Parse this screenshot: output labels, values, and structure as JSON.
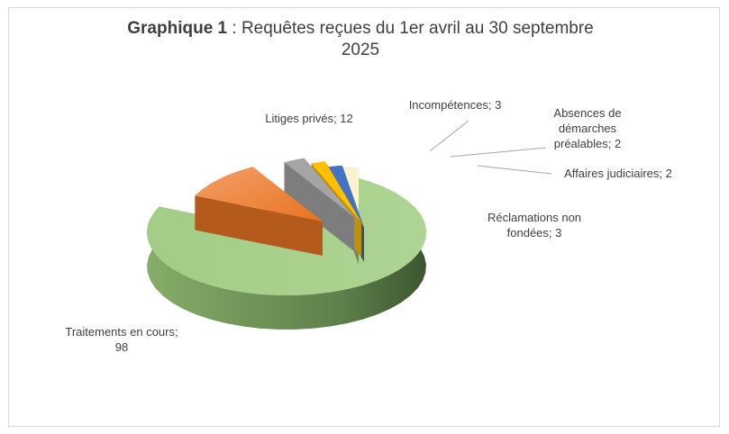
{
  "title_prefix": "Graphique 1",
  "title_sep": " :  ",
  "title_main": "Requêtes reçues du 1er avril au 30 septembre",
  "title_year": "2025",
  "chart_data": {
    "type": "pie",
    "title": "Graphique 1 :  Requêtes reçues du 1er avril au 30 septembre 2025",
    "categories": [
      "Traitements en cours",
      "Litiges privés",
      "Incompétences",
      "Absences de démarches préalables",
      "Affaires judiciaires",
      "Réclamations non fondées"
    ],
    "values": [
      98,
      12,
      3,
      2,
      2,
      3
    ],
    "colors": [
      "#a9d18e",
      "#ed7d31",
      "#a5a5a5",
      "#ffc000",
      "#4472c4",
      "#fff2cc"
    ],
    "data_labels": [
      [
        "Traitements en cours;",
        "98"
      ],
      [
        "Litiges privés; 12"
      ],
      [
        "Incompétences; 3"
      ],
      [
        "Absences de",
        "démarches",
        "préalables; 2"
      ],
      [
        "Affaires judiciaires; 2"
      ],
      [
        "Réclamations non",
        "fondées; 3"
      ]
    ]
  }
}
